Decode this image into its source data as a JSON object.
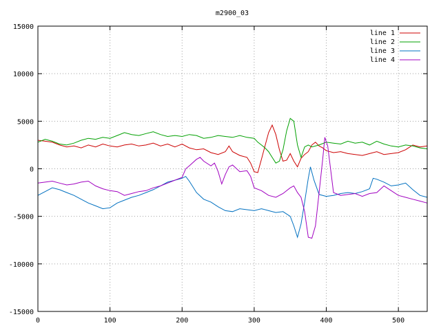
{
  "chart_data": {
    "type": "line",
    "title": "m2900_03",
    "xlabel": "",
    "ylabel": "",
    "xlim": [
      0,
      540
    ],
    "ylim": [
      -15000,
      15000
    ],
    "xticks": [
      0,
      100,
      200,
      300,
      400,
      500
    ],
    "yticks": [
      -15000,
      -10000,
      -5000,
      0,
      5000,
      10000,
      15000
    ],
    "grid": true,
    "legend_position": "top-right",
    "series": [
      {
        "name": "line 1",
        "color": "#cc0000",
        "points": [
          [
            0,
            3000
          ],
          [
            10,
            2900
          ],
          [
            20,
            2800
          ],
          [
            30,
            2500
          ],
          [
            40,
            2300
          ],
          [
            50,
            2400
          ],
          [
            60,
            2200
          ],
          [
            70,
            2500
          ],
          [
            80,
            2300
          ],
          [
            90,
            2600
          ],
          [
            100,
            2400
          ],
          [
            110,
            2300
          ],
          [
            120,
            2500
          ],
          [
            130,
            2600
          ],
          [
            140,
            2400
          ],
          [
            150,
            2500
          ],
          [
            160,
            2700
          ],
          [
            170,
            2400
          ],
          [
            180,
            2600
          ],
          [
            190,
            2300
          ],
          [
            200,
            2600
          ],
          [
            210,
            2200
          ],
          [
            220,
            2000
          ],
          [
            230,
            2100
          ],
          [
            240,
            1700
          ],
          [
            250,
            1500
          ],
          [
            260,
            1800
          ],
          [
            265,
            2400
          ],
          [
            270,
            1800
          ],
          [
            280,
            1400
          ],
          [
            290,
            1200
          ],
          [
            295,
            600
          ],
          [
            300,
            -300
          ],
          [
            305,
            -400
          ],
          [
            310,
            1000
          ],
          [
            315,
            2400
          ],
          [
            320,
            3800
          ],
          [
            325,
            4600
          ],
          [
            330,
            3600
          ],
          [
            335,
            2000
          ],
          [
            340,
            800
          ],
          [
            345,
            900
          ],
          [
            350,
            1600
          ],
          [
            355,
            800
          ],
          [
            360,
            200
          ],
          [
            365,
            1100
          ],
          [
            370,
            1500
          ],
          [
            375,
            1800
          ],
          [
            380,
            2500
          ],
          [
            385,
            2800
          ],
          [
            390,
            2400
          ],
          [
            395,
            2200
          ],
          [
            400,
            1900
          ],
          [
            410,
            1700
          ],
          [
            420,
            1800
          ],
          [
            430,
            1600
          ],
          [
            440,
            1500
          ],
          [
            450,
            1400
          ],
          [
            460,
            1600
          ],
          [
            470,
            1800
          ],
          [
            480,
            1500
          ],
          [
            490,
            1600
          ],
          [
            500,
            1700
          ],
          [
            510,
            2000
          ],
          [
            520,
            2500
          ],
          [
            530,
            2300
          ],
          [
            540,
            2400
          ]
        ]
      },
      {
        "name": "line 2",
        "color": "#00a000",
        "points": [
          [
            0,
            2800
          ],
          [
            10,
            3100
          ],
          [
            20,
            2900
          ],
          [
            30,
            2600
          ],
          [
            40,
            2500
          ],
          [
            50,
            2700
          ],
          [
            60,
            3000
          ],
          [
            70,
            3200
          ],
          [
            80,
            3100
          ],
          [
            90,
            3300
          ],
          [
            100,
            3200
          ],
          [
            110,
            3500
          ],
          [
            120,
            3800
          ],
          [
            130,
            3600
          ],
          [
            140,
            3500
          ],
          [
            150,
            3700
          ],
          [
            160,
            3900
          ],
          [
            170,
            3600
          ],
          [
            180,
            3400
          ],
          [
            190,
            3500
          ],
          [
            200,
            3400
          ],
          [
            210,
            3600
          ],
          [
            220,
            3500
          ],
          [
            230,
            3200
          ],
          [
            240,
            3300
          ],
          [
            250,
            3500
          ],
          [
            260,
            3400
          ],
          [
            270,
            3300
          ],
          [
            280,
            3500
          ],
          [
            290,
            3300
          ],
          [
            300,
            3200
          ],
          [
            305,
            2800
          ],
          [
            310,
            2500
          ],
          [
            315,
            2200
          ],
          [
            320,
            1800
          ],
          [
            325,
            1200
          ],
          [
            330,
            600
          ],
          [
            335,
            800
          ],
          [
            340,
            2000
          ],
          [
            345,
            4000
          ],
          [
            350,
            5300
          ],
          [
            355,
            5000
          ],
          [
            360,
            2500
          ],
          [
            365,
            1200
          ],
          [
            370,
            2300
          ],
          [
            375,
            2500
          ],
          [
            380,
            2300
          ],
          [
            390,
            2500
          ],
          [
            400,
            2800
          ],
          [
            410,
            2700
          ],
          [
            420,
            2600
          ],
          [
            430,
            2900
          ],
          [
            440,
            2700
          ],
          [
            450,
            2800
          ],
          [
            460,
            2500
          ],
          [
            470,
            2900
          ],
          [
            480,
            2600
          ],
          [
            490,
            2400
          ],
          [
            500,
            2300
          ],
          [
            510,
            2500
          ],
          [
            520,
            2400
          ],
          [
            530,
            2200
          ],
          [
            540,
            2100
          ]
        ]
      },
      {
        "name": "line 3",
        "color": "#0070c0",
        "points": [
          [
            0,
            -2800
          ],
          [
            10,
            -2400
          ],
          [
            20,
            -2000
          ],
          [
            30,
            -2200
          ],
          [
            40,
            -2500
          ],
          [
            50,
            -2800
          ],
          [
            60,
            -3200
          ],
          [
            70,
            -3600
          ],
          [
            80,
            -3900
          ],
          [
            90,
            -4200
          ],
          [
            100,
            -4100
          ],
          [
            110,
            -3600
          ],
          [
            120,
            -3300
          ],
          [
            130,
            -3000
          ],
          [
            140,
            -2800
          ],
          [
            150,
            -2500
          ],
          [
            160,
            -2200
          ],
          [
            170,
            -1800
          ],
          [
            180,
            -1400
          ],
          [
            190,
            -1200
          ],
          [
            200,
            -1000
          ],
          [
            205,
            -800
          ],
          [
            210,
            -1300
          ],
          [
            220,
            -2500
          ],
          [
            230,
            -3200
          ],
          [
            240,
            -3500
          ],
          [
            250,
            -4000
          ],
          [
            260,
            -4400
          ],
          [
            270,
            -4500
          ],
          [
            280,
            -4200
          ],
          [
            290,
            -4300
          ],
          [
            300,
            -4400
          ],
          [
            310,
            -4200
          ],
          [
            320,
            -4400
          ],
          [
            330,
            -4600
          ],
          [
            340,
            -4500
          ],
          [
            350,
            -5000
          ],
          [
            355,
            -6000
          ],
          [
            360,
            -7200
          ],
          [
            365,
            -5800
          ],
          [
            370,
            -3500
          ],
          [
            375,
            -1000
          ],
          [
            378,
            200
          ],
          [
            383,
            -1200
          ],
          [
            390,
            -2700
          ],
          [
            400,
            -2900
          ],
          [
            410,
            -2800
          ],
          [
            420,
            -2600
          ],
          [
            430,
            -2500
          ],
          [
            440,
            -2600
          ],
          [
            450,
            -2400
          ],
          [
            460,
            -2100
          ],
          [
            465,
            -1000
          ],
          [
            470,
            -1100
          ],
          [
            480,
            -1400
          ],
          [
            490,
            -1800
          ],
          [
            500,
            -1700
          ],
          [
            510,
            -1500
          ],
          [
            520,
            -2200
          ],
          [
            530,
            -2800
          ],
          [
            540,
            -3000
          ]
        ]
      },
      {
        "name": "line 4",
        "color": "#a000c0",
        "points": [
          [
            0,
            -1500
          ],
          [
            10,
            -1400
          ],
          [
            20,
            -1300
          ],
          [
            30,
            -1500
          ],
          [
            40,
            -1700
          ],
          [
            50,
            -1600
          ],
          [
            60,
            -1400
          ],
          [
            70,
            -1300
          ],
          [
            80,
            -1800
          ],
          [
            90,
            -2100
          ],
          [
            100,
            -2300
          ],
          [
            110,
            -2400
          ],
          [
            120,
            -2800
          ],
          [
            130,
            -2600
          ],
          [
            140,
            -2400
          ],
          [
            150,
            -2300
          ],
          [
            160,
            -2000
          ],
          [
            170,
            -1800
          ],
          [
            180,
            -1500
          ],
          [
            190,
            -1200
          ],
          [
            200,
            -900
          ],
          [
            205,
            0
          ],
          [
            210,
            300
          ],
          [
            220,
            1000
          ],
          [
            225,
            1200
          ],
          [
            230,
            800
          ],
          [
            240,
            300
          ],
          [
            245,
            600
          ],
          [
            250,
            -300
          ],
          [
            255,
            -1600
          ],
          [
            260,
            -600
          ],
          [
            265,
            200
          ],
          [
            270,
            400
          ],
          [
            280,
            -300
          ],
          [
            290,
            -200
          ],
          [
            295,
            -800
          ],
          [
            300,
            -2000
          ],
          [
            310,
            -2300
          ],
          [
            320,
            -2800
          ],
          [
            330,
            -3000
          ],
          [
            340,
            -2600
          ],
          [
            350,
            -2000
          ],
          [
            355,
            -1800
          ],
          [
            360,
            -2500
          ],
          [
            365,
            -3000
          ],
          [
            370,
            -4500
          ],
          [
            375,
            -7200
          ],
          [
            380,
            -7300
          ],
          [
            385,
            -6000
          ],
          [
            390,
            -2500
          ],
          [
            395,
            1000
          ],
          [
            398,
            3300
          ],
          [
            402,
            2400
          ],
          [
            410,
            -2500
          ],
          [
            420,
            -2800
          ],
          [
            430,
            -2700
          ],
          [
            440,
            -2600
          ],
          [
            450,
            -2900
          ],
          [
            460,
            -2600
          ],
          [
            470,
            -2500
          ],
          [
            480,
            -1800
          ],
          [
            490,
            -2300
          ],
          [
            500,
            -2800
          ],
          [
            510,
            -3000
          ],
          [
            520,
            -3200
          ],
          [
            530,
            -3400
          ],
          [
            540,
            -3600
          ]
        ]
      }
    ]
  }
}
